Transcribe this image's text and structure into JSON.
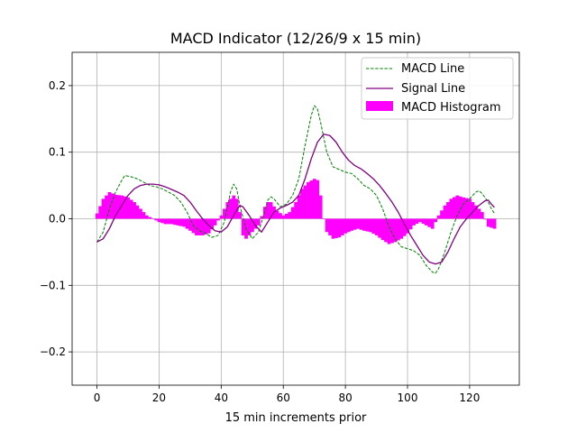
{
  "chart_data": {
    "type": "line",
    "title": "MACD Indicator (12/26/9 x 15 min)",
    "xlabel": "15 min increments prior",
    "ylabel": "",
    "xlim": [
      -8,
      136
    ],
    "ylim": [
      -0.25,
      0.25
    ],
    "x_ticks": [
      0,
      20,
      40,
      60,
      80,
      100,
      120
    ],
    "x_tick_labels": [
      "0",
      "20",
      "40",
      "60",
      "80",
      "100",
      "120"
    ],
    "y_ticks": [
      -0.2,
      -0.1,
      0.0,
      0.1,
      0.2
    ],
    "y_tick_labels": [
      "−0.2",
      "−0.1",
      "0.0",
      "0.1",
      "0.2"
    ],
    "grid": true,
    "legend_position": "top-right",
    "series": [
      {
        "name": "MACD Line",
        "style": "dashed",
        "color": "#008000",
        "points": [
          [
            0,
            -0.035
          ],
          [
            2,
            -0.02
          ],
          [
            4,
            0.015
          ],
          [
            6,
            0.04
          ],
          [
            8,
            0.058
          ],
          [
            9,
            0.065
          ],
          [
            11,
            0.063
          ],
          [
            13,
            0.06
          ],
          [
            15,
            0.055
          ],
          [
            17,
            0.05
          ],
          [
            19,
            0.048
          ],
          [
            21,
            0.045
          ],
          [
            23,
            0.04
          ],
          [
            25,
            0.035
          ],
          [
            27,
            0.025
          ],
          [
            29,
            0.01
          ],
          [
            31,
            -0.01
          ],
          [
            33,
            -0.018
          ],
          [
            35,
            -0.022
          ],
          [
            37,
            -0.028
          ],
          [
            39,
            -0.025
          ],
          [
            41,
            -0.005
          ],
          [
            43,
            0.04
          ],
          [
            44,
            0.052
          ],
          [
            45,
            0.045
          ],
          [
            46,
            0.02
          ],
          [
            48,
            -0.015
          ],
          [
            50,
            -0.03
          ],
          [
            52,
            -0.02
          ],
          [
            54,
            0.01
          ],
          [
            55,
            0.028
          ],
          [
            56,
            0.033
          ],
          [
            57,
            0.03
          ],
          [
            59,
            0.018
          ],
          [
            61,
            0.022
          ],
          [
            63,
            0.035
          ],
          [
            65,
            0.06
          ],
          [
            67,
            0.11
          ],
          [
            69,
            0.155
          ],
          [
            70,
            0.17
          ],
          [
            71,
            0.165
          ],
          [
            72,
            0.145
          ],
          [
            74,
            0.1
          ],
          [
            76,
            0.078
          ],
          [
            78,
            0.074
          ],
          [
            80,
            0.07
          ],
          [
            82,
            0.068
          ],
          [
            84,
            0.06
          ],
          [
            86,
            0.05
          ],
          [
            88,
            0.045
          ],
          [
            90,
            0.035
          ],
          [
            92,
            0.015
          ],
          [
            94,
            -0.012
          ],
          [
            96,
            -0.03
          ],
          [
            98,
            -0.042
          ],
          [
            100,
            -0.045
          ],
          [
            102,
            -0.048
          ],
          [
            104,
            -0.055
          ],
          [
            106,
            -0.07
          ],
          [
            108,
            -0.08
          ],
          [
            109,
            -0.082
          ],
          [
            110,
            -0.075
          ],
          [
            112,
            -0.05
          ],
          [
            114,
            -0.02
          ],
          [
            116,
            0.005
          ],
          [
            118,
            0.022
          ],
          [
            120,
            0.03
          ],
          [
            122,
            0.04
          ],
          [
            123,
            0.042
          ],
          [
            124,
            0.038
          ],
          [
            126,
            0.025
          ],
          [
            127,
            0.015
          ],
          [
            128,
            0.008
          ]
        ]
      },
      {
        "name": "Signal Line",
        "style": "solid",
        "color": "#800080",
        "points": [
          [
            0,
            -0.035
          ],
          [
            2,
            -0.03
          ],
          [
            4,
            -0.015
          ],
          [
            6,
            0.005
          ],
          [
            8,
            0.02
          ],
          [
            10,
            0.035
          ],
          [
            12,
            0.045
          ],
          [
            14,
            0.05
          ],
          [
            16,
            0.052
          ],
          [
            18,
            0.052
          ],
          [
            20,
            0.051
          ],
          [
            22,
            0.048
          ],
          [
            24,
            0.044
          ],
          [
            26,
            0.04
          ],
          [
            28,
            0.035
          ],
          [
            30,
            0.025
          ],
          [
            32,
            0.012
          ],
          [
            34,
            0.0
          ],
          [
            36,
            -0.01
          ],
          [
            38,
            -0.018
          ],
          [
            40,
            -0.02
          ],
          [
            42,
            -0.012
          ],
          [
            44,
            0.005
          ],
          [
            46,
            0.02
          ],
          [
            47,
            0.018
          ],
          [
            49,
            0.005
          ],
          [
            51,
            -0.01
          ],
          [
            53,
            -0.02
          ],
          [
            55,
            -0.005
          ],
          [
            57,
            0.01
          ],
          [
            59,
            0.016
          ],
          [
            61,
            0.02
          ],
          [
            63,
            0.025
          ],
          [
            65,
            0.035
          ],
          [
            67,
            0.06
          ],
          [
            69,
            0.09
          ],
          [
            71,
            0.115
          ],
          [
            73,
            0.127
          ],
          [
            75,
            0.125
          ],
          [
            77,
            0.115
          ],
          [
            79,
            0.1
          ],
          [
            81,
            0.088
          ],
          [
            83,
            0.08
          ],
          [
            85,
            0.075
          ],
          [
            87,
            0.068
          ],
          [
            89,
            0.06
          ],
          [
            91,
            0.05
          ],
          [
            93,
            0.038
          ],
          [
            95,
            0.025
          ],
          [
            97,
            0.01
          ],
          [
            99,
            -0.008
          ],
          [
            101,
            -0.025
          ],
          [
            103,
            -0.04
          ],
          [
            105,
            -0.055
          ],
          [
            107,
            -0.065
          ],
          [
            109,
            -0.068
          ],
          [
            111,
            -0.065
          ],
          [
            113,
            -0.05
          ],
          [
            115,
            -0.03
          ],
          [
            117,
            -0.012
          ],
          [
            119,
            0.0
          ],
          [
            121,
            0.01
          ],
          [
            123,
            0.02
          ],
          [
            125,
            0.027
          ],
          [
            126,
            0.028
          ],
          [
            127,
            0.022
          ],
          [
            128,
            0.017
          ]
        ]
      },
      {
        "name": "MACD Histogram",
        "style": "bar",
        "color": "#ff00ff",
        "points": [
          [
            0,
            0.008
          ],
          [
            2,
            0.03
          ],
          [
            4,
            0.04
          ],
          [
            6,
            0.036
          ],
          [
            8,
            0.035
          ],
          [
            10,
            0.032
          ],
          [
            12,
            0.025
          ],
          [
            14,
            0.015
          ],
          [
            16,
            0.005
          ],
          [
            18,
            0.0
          ],
          [
            20,
            -0.005
          ],
          [
            22,
            -0.008
          ],
          [
            24,
            -0.008
          ],
          [
            26,
            -0.01
          ],
          [
            28,
            -0.012
          ],
          [
            30,
            -0.018
          ],
          [
            32,
            -0.025
          ],
          [
            34,
            -0.025
          ],
          [
            36,
            -0.022
          ],
          [
            38,
            -0.01
          ],
          [
            40,
            0.005
          ],
          [
            42,
            0.025
          ],
          [
            44,
            0.035
          ],
          [
            45,
            0.03
          ],
          [
            46,
            0.01
          ],
          [
            47,
            -0.025
          ],
          [
            48,
            -0.03
          ],
          [
            50,
            -0.02
          ],
          [
            52,
            -0.01
          ],
          [
            54,
            0.018
          ],
          [
            55,
            0.025
          ],
          [
            56,
            0.025
          ],
          [
            58,
            0.012
          ],
          [
            60,
            0.005
          ],
          [
            62,
            0.01
          ],
          [
            64,
            0.025
          ],
          [
            66,
            0.045
          ],
          [
            68,
            0.055
          ],
          [
            70,
            0.06
          ],
          [
            71,
            0.058
          ],
          [
            72,
            0.035
          ],
          [
            73,
            0.0
          ],
          [
            74,
            -0.02
          ],
          [
            76,
            -0.03
          ],
          [
            78,
            -0.028
          ],
          [
            80,
            -0.022
          ],
          [
            82,
            -0.018
          ],
          [
            84,
            -0.015
          ],
          [
            86,
            -0.018
          ],
          [
            88,
            -0.02
          ],
          [
            90,
            -0.025
          ],
          [
            92,
            -0.032
          ],
          [
            94,
            -0.038
          ],
          [
            96,
            -0.035
          ],
          [
            98,
            -0.03
          ],
          [
            100,
            -0.022
          ],
          [
            102,
            -0.01
          ],
          [
            104,
            -0.005
          ],
          [
            106,
            -0.01
          ],
          [
            108,
            -0.015
          ],
          [
            110,
            0.005
          ],
          [
            112,
            0.02
          ],
          [
            114,
            0.03
          ],
          [
            116,
            0.035
          ],
          [
            118,
            0.032
          ],
          [
            120,
            0.03
          ],
          [
            122,
            0.02
          ],
          [
            124,
            0.01
          ],
          [
            126,
            -0.012
          ],
          [
            128,
            -0.015
          ]
        ]
      }
    ]
  }
}
